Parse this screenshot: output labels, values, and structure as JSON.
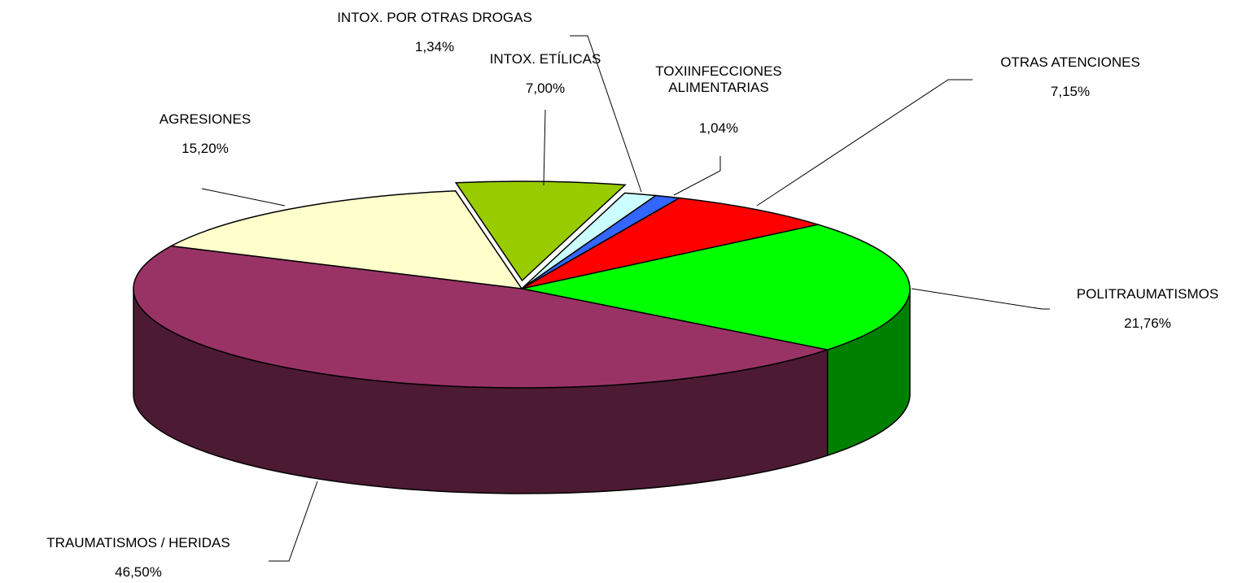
{
  "chart_data": {
    "type": "pie3d",
    "categories": [
      "POLITRAUMATISMOS",
      "TRAUMATISMOS / HERIDAS",
      "AGRESIONES",
      "INTOX. ETÍLICAS",
      "INTOX. POR OTRAS DROGAS",
      "TOXIINFECCIONES ALIMENTARIAS",
      "OTRAS ATENCIONES"
    ],
    "values": [
      21.76,
      46.5,
      15.2,
      7.0,
      1.34,
      1.04,
      7.15
    ],
    "value_labels": [
      "21,76%",
      "46,50%",
      "15,20%",
      "7,00%",
      "1,34%",
      "1,04%",
      "7,15%"
    ],
    "colors": [
      "#00ff00",
      "#993366",
      "#ffffcc",
      "#99cc00",
      "#ccffff",
      "#3366ff",
      "#ff0000"
    ],
    "side_colors": [
      "#008000",
      "#4d1a33",
      "#999977",
      "#5c7a00",
      "#7a9999",
      "#1f3d99",
      "#990000"
    ],
    "exploded": [
      3
    ]
  }
}
